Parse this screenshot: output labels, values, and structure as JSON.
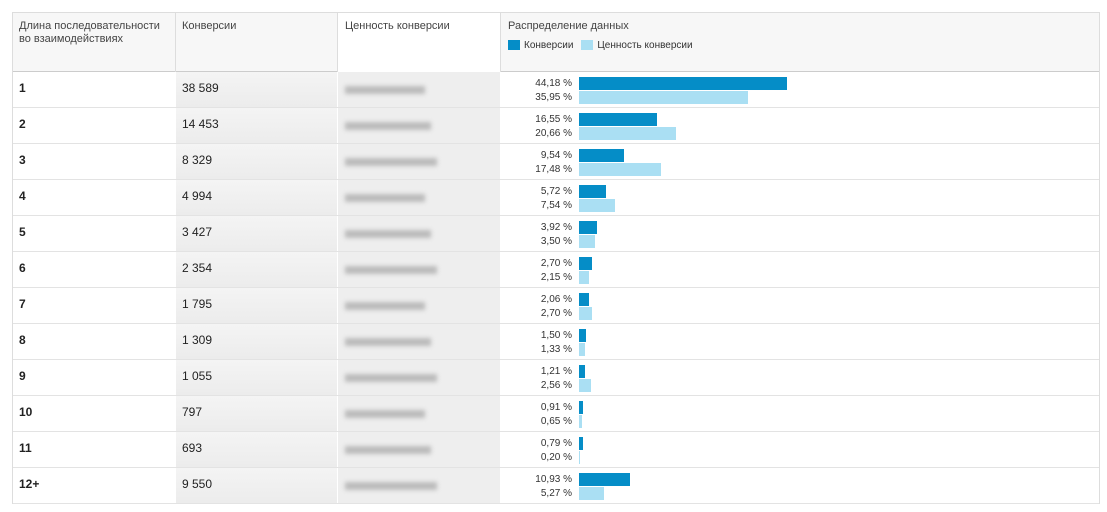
{
  "table": {
    "headers": [
      "Длина последовательности во взаимодействиях",
      "Конверсии",
      "Ценность конверсии",
      "Распределение данных"
    ],
    "legend": [
      {
        "name": "Конверсии",
        "color": "#058dc7"
      },
      {
        "name": "Ценность конверсии",
        "color": "#aadff3"
      }
    ],
    "rows": [
      {
        "length": "1",
        "conversions": "38 589",
        "distribution": [
          {
            "value": 44.18,
            "label": "44,18 %"
          },
          {
            "value": 35.95,
            "label": "35,95 %"
          }
        ]
      },
      {
        "length": "2",
        "conversions": "14 453",
        "distribution": [
          {
            "value": 16.55,
            "label": "16,55 %"
          },
          {
            "value": 20.66,
            "label": "20,66 %"
          }
        ]
      },
      {
        "length": "3",
        "conversions": "8 329",
        "distribution": [
          {
            "value": 9.54,
            "label": "9,54 %"
          },
          {
            "value": 17.48,
            "label": "17,48 %"
          }
        ]
      },
      {
        "length": "4",
        "conversions": "4 994",
        "distribution": [
          {
            "value": 5.72,
            "label": "5,72 %"
          },
          {
            "value": 7.54,
            "label": "7,54 %"
          }
        ]
      },
      {
        "length": "5",
        "conversions": "3 427",
        "distribution": [
          {
            "value": 3.92,
            "label": "3,92 %"
          },
          {
            "value": 3.5,
            "label": "3,50 %"
          }
        ]
      },
      {
        "length": "6",
        "conversions": "2 354",
        "distribution": [
          {
            "value": 2.7,
            "label": "2,70 %"
          },
          {
            "value": 2.15,
            "label": "2,15 %"
          }
        ]
      },
      {
        "length": "7",
        "conversions": "1 795",
        "distribution": [
          {
            "value": 2.06,
            "label": "2,06 %"
          },
          {
            "value": 2.7,
            "label": "2,70 %"
          }
        ]
      },
      {
        "length": "8",
        "conversions": "1 309",
        "distribution": [
          {
            "value": 1.5,
            "label": "1,50 %"
          },
          {
            "value": 1.33,
            "label": "1,33 %"
          }
        ]
      },
      {
        "length": "9",
        "conversions": "1 055",
        "distribution": [
          {
            "value": 1.21,
            "label": "1,21 %"
          },
          {
            "value": 2.56,
            "label": "2,56 %"
          }
        ]
      },
      {
        "length": "10",
        "conversions": "797",
        "distribution": [
          {
            "value": 0.91,
            "label": "0,91 %"
          },
          {
            "value": 0.65,
            "label": "0,65 %"
          }
        ]
      },
      {
        "length": "11",
        "conversions": "693",
        "distribution": [
          {
            "value": 0.79,
            "label": "0,79 %"
          },
          {
            "value": 0.2,
            "label": "0,20 %"
          }
        ]
      },
      {
        "length": "12+",
        "conversions": "9 550",
        "distribution": [
          {
            "value": 10.93,
            "label": "10,93 %"
          },
          {
            "value": 5.27,
            "label": "5,27 %"
          }
        ]
      }
    ]
  }
}
